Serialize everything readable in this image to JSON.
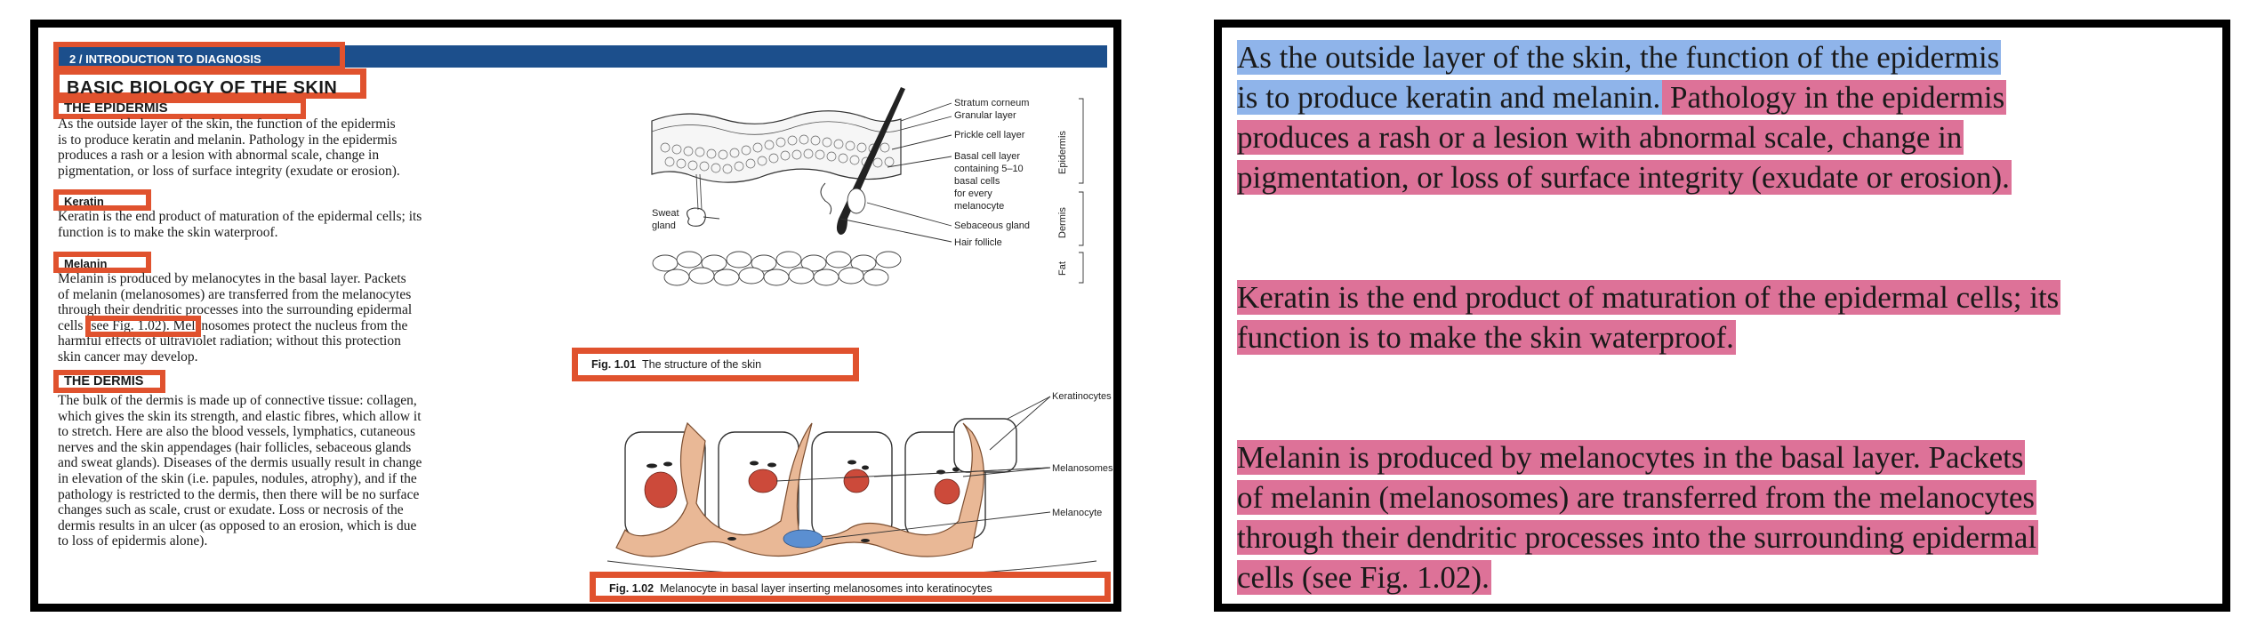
{
  "header": {
    "chapter": "2 / INTRODUCTION TO DIAGNOSIS"
  },
  "sections": {
    "title": "BASIC BIOLOGY OF THE SKIN",
    "epidermis_heading": "THE EPIDERMIS",
    "epidermis_lines": [
      "As the outside layer of the skin, the function of the epidermis",
      "is to produce keratin and melanin. Pathology in the epidermis",
      "produces a rash or a lesion with abnormal scale, change in",
      "pigmentation, or loss of surface integrity (exudate or erosion)."
    ],
    "keratin_heading": "Keratin",
    "keratin_lines": [
      "Keratin is the end product of maturation of the epidermal cells; its",
      "function is to make the skin waterproof."
    ],
    "melanin_heading": "Melanin",
    "melanin_lines": [
      "Melanin is produced by melanocytes in the basal layer. Packets",
      "of melanin (melanosomes) are transferred from the melanocytes",
      "through their dendritic processes into the surrounding epidermal",
      "cells (see Fig. 1.02). Melanosomes protect the nucleus from the",
      "harmful effects of ultraviolet radiation; without this protection",
      "skin cancer may develop."
    ],
    "dermis_heading": "THE DERMIS",
    "dermis_lines": [
      "The bulk of the dermis is made up of connective tissue: collagen,",
      "which gives the skin its strength, and elastic fibres, which allow it",
      "to stretch. Here are also the blood vessels, lymphatics, cutaneous",
      "nerves and the skin appendages (hair follicles, sebaceous glands",
      "and sweat glands). Diseases of the dermis usually result in change",
      "in elevation of the skin (i.e. papules, nodules, atrophy), and if the",
      "pathology is restricted to the dermis, then there will be no surface",
      "changes such as scale, crust or exudate. Loss or necrosis of the",
      "dermis results in an ulcer (as opposed to an erosion, which is due",
      "to loss of epidermis alone)."
    ]
  },
  "figure1": {
    "caption_num": "Fig. 1.01",
    "caption_text": "The structure of the skin",
    "labels": {
      "stratum": "Stratum corneum",
      "granular": "Granular layer",
      "prickle": "Prickle cell layer",
      "basal1": "Basal cell layer",
      "basal2": "containing 5–10",
      "basal3": "basal cells",
      "basal4": "for every",
      "basal5": "melanocyte",
      "sebaceous": "Sebaceous gland",
      "hair": "Hair follicle",
      "sweat1": "Sweat",
      "sweat2": "gland",
      "epidermis": "Epidermis",
      "dermis": "Dermis",
      "fat": "Fat"
    }
  },
  "figure2": {
    "caption_num": "Fig. 1.02",
    "caption_text": "Melanocyte in basal layer inserting melanosomes into keratinocytes",
    "labels": {
      "keratinocytes": "Keratinocytes",
      "melanosomes": "Melanosomes",
      "melanocyte": "Melanocyte"
    }
  },
  "zoom": {
    "lines": [
      {
        "parts": [
          {
            "text": "As the outside layer of the skin, the function of the epidermis",
            "hl": "blue"
          }
        ]
      },
      {
        "parts": [
          {
            "text": "is to produce keratin and melanin.",
            "hl": "blue"
          },
          {
            "text": " Pathology in the epidermis",
            "hl": "pink"
          }
        ]
      },
      {
        "parts": [
          {
            "text": "produces a rash or a lesion with abnormal scale, change in",
            "hl": "pink"
          }
        ]
      },
      {
        "parts": [
          {
            "text": "pigmentation, or loss of surface integrity (exudate or erosion).",
            "hl": "pink"
          }
        ]
      },
      {
        "parts": [
          {
            "text": "Keratin is the end product of maturation of the epidermal cells; its",
            "hl": "pink"
          }
        ]
      },
      {
        "parts": [
          {
            "text": "function is to make the skin waterproof.",
            "hl": "pink"
          }
        ]
      },
      {
        "parts": [
          {
            "text": "Melanin is produced by melanocytes in the basal layer. Packets",
            "hl": "pink"
          }
        ]
      },
      {
        "parts": [
          {
            "text": "of melanin (melanosomes) are transferred from the melanocytes",
            "hl": "pink"
          }
        ]
      },
      {
        "parts": [
          {
            "text": "through their dendritic processes into the surrounding epidermal",
            "hl": "pink"
          }
        ]
      },
      {
        "parts": [
          {
            "text": "cells (see Fig. 1.02).",
            "hl": "pink"
          }
        ]
      }
    ]
  },
  "colors": {
    "box": "#e0522e",
    "bar": "#1c4f8c",
    "highlight_blue": "#8fb4ea",
    "highlight_pink": "#dd7298"
  }
}
